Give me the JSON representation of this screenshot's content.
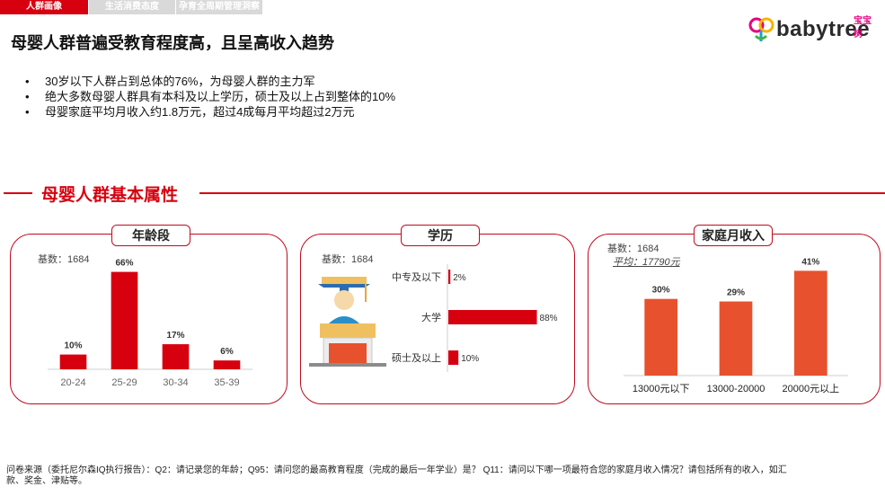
{
  "tabs": [
    {
      "label": "人群画像",
      "active": true
    },
    {
      "label": "生活消费态度",
      "active": false
    },
    {
      "label": "孕育全周期管理洞察",
      "active": false
    }
  ],
  "logo": {
    "brand": "babytree",
    "cn": "宝宝树"
  },
  "headline": "母婴人群普遍受教育程度高，且呈高收入趋势",
  "bullets": [
    "30岁以下人群占到总体的76%，为母婴人群的主力军",
    "绝大多数母婴人群具有本科及以上学历，硕士及以上占到整体的10%",
    "母婴家庭平均月收入约1.8万元，超过4成每月平均超过2万元"
  ],
  "section_title": "母婴人群基本属性",
  "colors": {
    "red": "#d7000f",
    "orange": "#e8512d",
    "axis": "#cfcfcf"
  },
  "chart_data": [
    {
      "type": "bar",
      "title": "年龄段",
      "base": "基数：1684",
      "categories": [
        "20-24",
        "25-29",
        "30-34",
        "35-39"
      ],
      "values": [
        10,
        66,
        17,
        6
      ],
      "labels": [
        "10%",
        "66%",
        "17%",
        "6%"
      ],
      "ylim": [
        0,
        70
      ],
      "color": "#d7000f"
    },
    {
      "type": "bar",
      "orientation": "horizontal",
      "title": "学历",
      "base": "基数：1684",
      "categories": [
        "中专及以下",
        "大学",
        "硕士及以上"
      ],
      "values": [
        2,
        88,
        10
      ],
      "labels": [
        "2%",
        "88%",
        "10%"
      ],
      "xlim": [
        0,
        100
      ],
      "color": "#d7000f"
    },
    {
      "type": "bar",
      "title": "家庭月收入",
      "base": "基数：1684",
      "average": "平均：17790元",
      "categories": [
        "13000元以下",
        "13000-20000",
        "20000元以上"
      ],
      "values": [
        30,
        29,
        41
      ],
      "labels": [
        "30%",
        "29%",
        "41%"
      ],
      "ylim": [
        0,
        45
      ],
      "color": "#e8512d"
    }
  ],
  "footer": "问卷来源（委托尼尔森IQ执行报告）：Q2：请记录您的年龄；Q95：请问您的最高教育程度（完成的最后一年学业）是？ Q11：请问以下哪一项最符合您的家庭月收入情况？请包括所有的收入，如汇款、奖金、津贴等。"
}
